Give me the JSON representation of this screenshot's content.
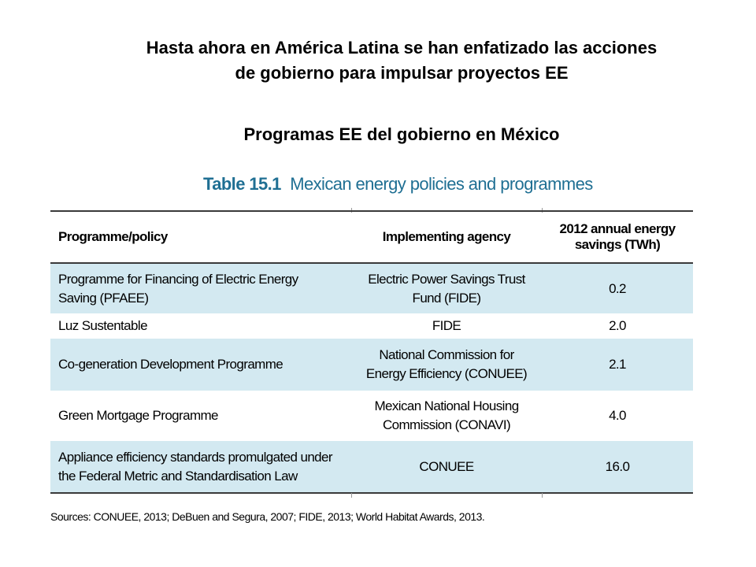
{
  "slide": {
    "heading_line1": "Hasta ahora en América Latina se han enfatizado las acciones",
    "heading_line2": "de gobierno para impulsar proyectos EE",
    "subheading": "Programas EE del gobierno en México"
  },
  "table": {
    "caption_number": "Table 15.1",
    "caption_title": "Mexican energy policies and programmes",
    "header": {
      "col1": "Programme/policy",
      "col2": "Implementing agency",
      "col3_line1": "2012 annual energy",
      "col3_line2": "savings (TWh)"
    },
    "rows": [
      {
        "policy_l1": "Programme for Financing of Electric Energy",
        "policy_l2": "Saving (PFAEE)",
        "agency_l1": "Electric Power Savings Trust",
        "agency_l2": "Fund (FIDE)",
        "savings": "0.2"
      },
      {
        "policy_l1": "Luz Sustentable",
        "policy_l2": "",
        "agency_l1": "FIDE",
        "agency_l2": "",
        "savings": "2.0"
      },
      {
        "policy_l1": "Co-generation Development Programme",
        "policy_l2": "",
        "agency_l1": "National Commission for",
        "agency_l2": "Energy Efficiency (CONUEE)",
        "savings": "2.1"
      },
      {
        "policy_l1": "Green Mortgage Programme",
        "policy_l2": "",
        "agency_l1": "Mexican National Housing",
        "agency_l2": "Commission (CONAVI)",
        "savings": "4.0"
      },
      {
        "policy_l1": "Appliance efficiency standards promulgated under",
        "policy_l2": "the Federal Metric and Standardisation Law",
        "agency_l1": "CONUEE",
        "agency_l2": "",
        "savings": "16.0"
      }
    ],
    "sources": "Sources: CONUEE, 2013; DeBuen and Segura, 2007; FIDE, 2013; World Habitat Awards, 2013."
  },
  "colors": {
    "caption": "#1f6f93",
    "row_shade": "#d3e9f1",
    "rule": "#3a3a3a"
  }
}
